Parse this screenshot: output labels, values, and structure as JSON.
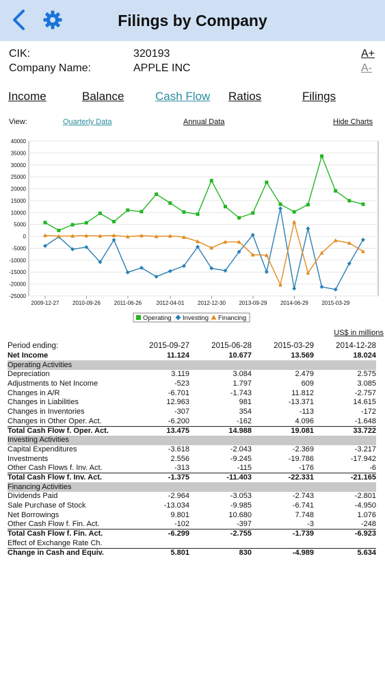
{
  "header": {
    "title": "Filings by Company",
    "back_icon": "chevron-left-icon",
    "settings_icon": "gear-icon",
    "accent": "#1a73d9"
  },
  "company": {
    "cik_label": "CIK:",
    "cik_value": "320193",
    "name_label": "Company Name:",
    "name_value": "APPLE INC",
    "font_increase": "A+",
    "font_decrease": "A-"
  },
  "tabs": [
    {
      "label": "Income",
      "active": false
    },
    {
      "label": "Balance",
      "active": false
    },
    {
      "label": "Cash Flow",
      "active": true
    },
    {
      "label": "Ratios",
      "active": false
    },
    {
      "label": "Filings",
      "active": false
    }
  ],
  "view": {
    "label": "View:",
    "quarterly": "Quarterly Data",
    "annual": "Annual  Data",
    "hide_charts": "Hide Charts"
  },
  "chart_data": {
    "type": "line",
    "ylim": [
      -25000,
      40000
    ],
    "yticks": [
      -25000,
      -20000,
      -15000,
      -10000,
      -5000,
      0,
      5000,
      10000,
      15000,
      20000,
      25000,
      30000,
      35000,
      40000
    ],
    "xticks": [
      "2009-12-27",
      "2010-09-26",
      "2011-06-26",
      "2012-04-01",
      "2012-12-30",
      "2013-09-29",
      "2014-06-29",
      "2015-03-29"
    ],
    "x": [
      "2009-12-27",
      "2010-03-27",
      "2010-06-26",
      "2010-09-25",
      "2010-12-25",
      "2011-03-26",
      "2011-06-25",
      "2011-09-24",
      "2011-12-31",
      "2012-03-31",
      "2012-06-30",
      "2012-09-29",
      "2012-12-29",
      "2013-03-30",
      "2013-06-29",
      "2013-09-28",
      "2013-12-28",
      "2014-03-29",
      "2014-06-28",
      "2014-09-27",
      "2014-12-27",
      "2015-03-28",
      "2015-06-27",
      "2015-09-26"
    ],
    "series": [
      {
        "name": "Operating",
        "color": "#22b522",
        "marker": "square",
        "values": [
          5800,
          2500,
          4900,
          5700,
          9700,
          6200,
          11000,
          10400,
          17700,
          14000,
          10200,
          9300,
          23400,
          12500,
          7800,
          9800,
          22700,
          13500,
          10300,
          13300,
          33700,
          19100,
          15000,
          13500
        ]
      },
      {
        "name": "Investing",
        "color": "#2a7fb5",
        "marker": "diamond",
        "values": [
          -4000,
          -200,
          -5400,
          -4500,
          -10800,
          -1500,
          -15100,
          -13200,
          -16900,
          -14600,
          -12400,
          -4400,
          -13400,
          -14400,
          -6500,
          600,
          -14900,
          11700,
          -21900,
          3300,
          -21200,
          -22300,
          -11400,
          -1400
        ]
      },
      {
        "name": "Financing",
        "color": "#e08a1e",
        "marker": "triangle",
        "values": [
          400,
          100,
          200,
          300,
          200,
          400,
          -100,
          300,
          0,
          200,
          -300,
          -2100,
          -4800,
          -2300,
          -2300,
          -7700,
          -7900,
          -20300,
          6100,
          -15300,
          -6900,
          -1700,
          -2800,
          -6300
        ]
      }
    ],
    "legend": "bottom-center",
    "grid": true
  },
  "table": {
    "units": "US$ in millions",
    "period_label": "Period ending:",
    "periods": [
      "2015-09-27",
      "2015-06-28",
      "2015-03-29",
      "2014-12-28"
    ],
    "rows": [
      {
        "label": "Net Income",
        "values": [
          "11.124",
          "10.677",
          "13.569",
          "18.024"
        ],
        "bold": true
      },
      {
        "label": "Operating Activities",
        "section": true
      },
      {
        "label": "Depreciation",
        "values": [
          "3.119",
          "3.084",
          "2.479",
          "2.575"
        ]
      },
      {
        "label": "Adjustments to Net Income",
        "values": [
          "-523",
          "1.797",
          "609",
          "3.085"
        ]
      },
      {
        "label": "Changes in A/R",
        "values": [
          "-6.701",
          "-1.743",
          "11.812",
          "-2.757"
        ]
      },
      {
        "label": "Changes in Liabilities",
        "values": [
          "12.963",
          "981",
          "-13.371",
          "14.615"
        ]
      },
      {
        "label": "Changes in Inventories",
        "values": [
          "-307",
          "354",
          "-113",
          "-172"
        ]
      },
      {
        "label": "Changes in Other Oper. Act.",
        "values": [
          "-6.200",
          "-162",
          "4.096",
          "-1.648"
        ]
      },
      {
        "label": "Total Cash Flow f. Oper. Act.",
        "values": [
          "13.475",
          "14.988",
          "19.081",
          "33.722"
        ],
        "bold": true,
        "topline": true
      },
      {
        "label": "Investing Activities",
        "section": true
      },
      {
        "label": "Capital Expenditures",
        "values": [
          "-3.618",
          "-2.043",
          "-2.369",
          "-3.217"
        ]
      },
      {
        "label": "Investments",
        "values": [
          "2.556",
          "-9.245",
          "-19.786",
          "-17.942"
        ]
      },
      {
        "label": "Other Cash Flows f. Inv. Act.",
        "values": [
          "-313",
          "-115",
          "-176",
          "-6"
        ]
      },
      {
        "label": "Total Cash Flow f. Inv. Act.",
        "values": [
          "-1.375",
          "-11.403",
          "-22.331",
          "-21.165"
        ],
        "bold": true,
        "topline": true
      },
      {
        "label": "Financing Activities",
        "section": true
      },
      {
        "label": "Dividends Paid",
        "values": [
          "-2.964",
          "-3.053",
          "-2.743",
          "-2.801"
        ]
      },
      {
        "label": "Sale Purchase of Stock",
        "values": [
          "-13.034",
          "-9.985",
          "-6.741",
          "-4.950"
        ]
      },
      {
        "label": "Net Borrowings",
        "values": [
          "9.801",
          "10.680",
          "7.748",
          "1.076"
        ]
      },
      {
        "label": "Other Cash Flow f. Fin. Act.",
        "values": [
          "-102",
          "-397",
          "-3",
          "-248"
        ]
      },
      {
        "label": "Total Cash Flow f. Fin. Act.",
        "values": [
          "-6.299",
          "-2.755",
          "-1.739",
          "-6.923"
        ],
        "bold": true,
        "topline": true
      },
      {
        "label": "Effect of Exchange Rate Ch.",
        "values": [
          "",
          "",
          "",
          ""
        ]
      },
      {
        "label": "Change in Cash and Equiv.",
        "values": [
          "5.801",
          "830",
          "-4.989",
          "5.634"
        ],
        "bold": true,
        "topline": true
      }
    ]
  }
}
